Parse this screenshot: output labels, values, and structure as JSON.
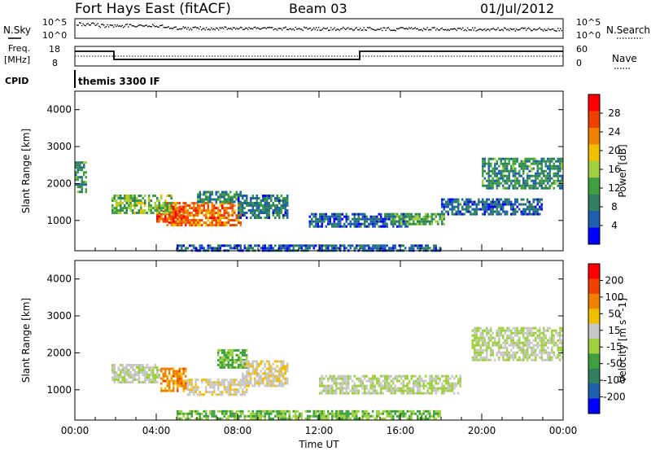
{
  "header": {
    "station": "Fort Hays East (fitACF)",
    "beam": "Beam 03",
    "date": "01/Jul/2012"
  },
  "noise_panel": {
    "left_label": "N.Sky",
    "right_label": "N.Search",
    "left_ticks": [
      "10^5",
      "10^0"
    ],
    "right_ticks": [
      "10^5",
      "10^0"
    ]
  },
  "freq_panel": {
    "left_label_line1": "Freq.",
    "left_label_line2": "[MHz]",
    "right_label": "Nave",
    "left_ticks": [
      "18",
      "8"
    ],
    "right_ticks": [
      "60",
      "0"
    ]
  },
  "cpid": {
    "label": "CPID",
    "value": "themis 3300 IF"
  },
  "colors": {
    "power_scale": [
      "#0000ff",
      "#1f5fb0",
      "#2f7f60",
      "#3fa040",
      "#9fd040",
      "#f0c000",
      "#f08000",
      "#f04000",
      "#ff0000"
    ],
    "velocity_scale": [
      "#0000ff",
      "#1f5fb0",
      "#2f7f60",
      "#3fa040",
      "#9fd040",
      "#c8c8c8",
      "#f0c000",
      "#f08000",
      "#f04000",
      "#ff0000"
    ]
  },
  "chart_data": [
    {
      "type": "heatmap",
      "name": "power",
      "ylabel": "Slant Range [km]",
      "xlabel": "",
      "x_ticks": [
        "00:00",
        "04:00",
        "08:00",
        "12:00",
        "16:00",
        "20:00",
        "00:00"
      ],
      "y_ticks": [
        "1000",
        "2000",
        "3000",
        "4000"
      ],
      "xlim_hours": [
        0,
        24
      ],
      "ylim_km": [
        180,
        4500
      ],
      "colorbar_label": "Power [dB]",
      "colorbar_ticks": [
        "28",
        "24",
        "20",
        "16",
        "12",
        "8",
        "4"
      ],
      "colorbar_range": [
        0,
        32
      ],
      "regions": [
        {
          "t": [
            4.5,
            8.2
          ],
          "r": [
            900,
            1500
          ],
          "power": 24
        },
        {
          "t": [
            4.0,
            5.5
          ],
          "r": [
            1000,
            1400
          ],
          "power": 26
        },
        {
          "t": [
            1.8,
            4.8
          ],
          "r": [
            1200,
            1700
          ],
          "power": 14
        },
        {
          "t": [
            6.0,
            8.2
          ],
          "r": [
            1500,
            1800
          ],
          "power": 10
        },
        {
          "t": [
            8.0,
            10.5
          ],
          "r": [
            1100,
            1700
          ],
          "power": 8
        },
        {
          "t": [
            11.5,
            16.5
          ],
          "r": [
            850,
            1200
          ],
          "power": 6
        },
        {
          "t": [
            15.5,
            18.2
          ],
          "r": [
            900,
            1200
          ],
          "power": 12
        },
        {
          "t": [
            18.0,
            23.0
          ],
          "r": [
            1200,
            1600
          ],
          "power": 6
        },
        {
          "t": [
            20.0,
            24.0
          ],
          "r": [
            1900,
            2700
          ],
          "power": 10
        },
        {
          "t": [
            0.0,
            0.6
          ],
          "r": [
            1800,
            2600
          ],
          "power": 10
        },
        {
          "t": [
            5.0,
            18.0
          ],
          "r": [
            200,
            350
          ],
          "power": 6
        }
      ]
    },
    {
      "type": "heatmap",
      "name": "velocity",
      "ylabel": "Slant Range [km]",
      "xlabel": "Time UT",
      "x_ticks": [
        "00:00",
        "04:00",
        "08:00",
        "12:00",
        "16:00",
        "20:00",
        "00:00"
      ],
      "y_ticks": [
        "1000",
        "2000",
        "3000",
        "4000"
      ],
      "xlim_hours": [
        0,
        24
      ],
      "ylim_km": [
        180,
        4500
      ],
      "colorbar_label": "Velocity [m s^-1]",
      "colorbar_ticks": [
        "200",
        "100",
        "50",
        "15",
        "-15",
        "-50",
        "-100",
        "-200"
      ],
      "colorbar_range": [
        -250,
        250
      ],
      "regions": [
        {
          "t": [
            1.8,
            4.2
          ],
          "r": [
            1200,
            1700
          ],
          "velocity": 10
        },
        {
          "t": [
            4.2,
            5.5
          ],
          "r": [
            1000,
            1600
          ],
          "velocity": 120
        },
        {
          "t": [
            5.5,
            8.5
          ],
          "r": [
            900,
            1300
          ],
          "velocity": 40
        },
        {
          "t": [
            7.0,
            8.5
          ],
          "r": [
            1600,
            2100
          ],
          "velocity": -60
        },
        {
          "t": [
            8.2,
            10.5
          ],
          "r": [
            1100,
            1800
          ],
          "velocity": 40
        },
        {
          "t": [
            5.0,
            18.0
          ],
          "r": [
            200,
            450
          ],
          "velocity": -50
        },
        {
          "t": [
            12.0,
            19.0
          ],
          "r": [
            900,
            1400
          ],
          "velocity": 0
        },
        {
          "t": [
            19.5,
            24.0
          ],
          "r": [
            1800,
            2700
          ],
          "velocity": 0
        }
      ]
    }
  ]
}
